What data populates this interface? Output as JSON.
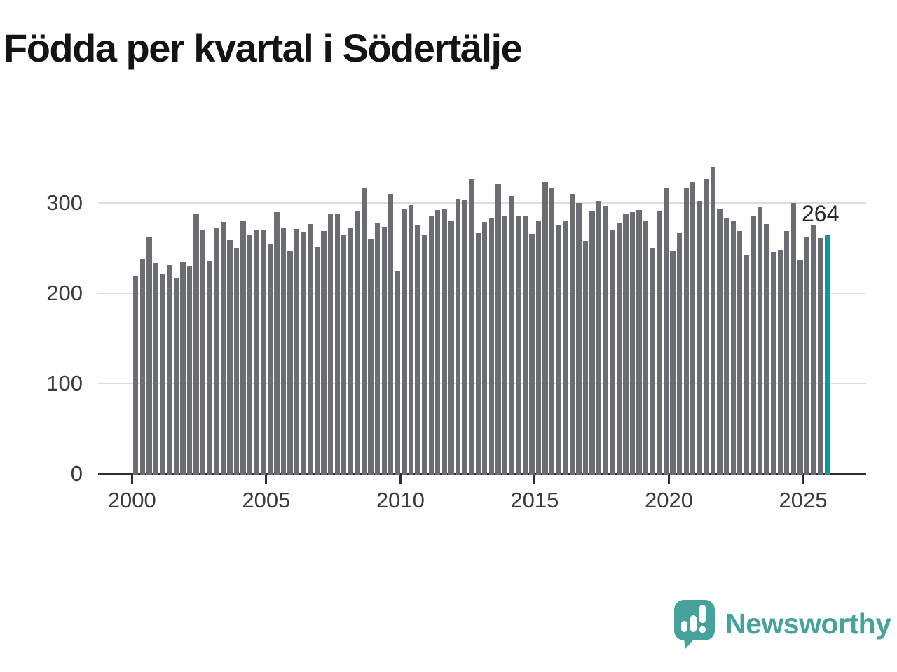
{
  "title": "Födda per kvartal i Södertälje",
  "annotation": {
    "label": "264"
  },
  "logo": {
    "brand": "Newsworthy"
  },
  "colors": {
    "bar": "#6c6c74",
    "highlight": "#0a9a9c",
    "logo_teal": "#47a29b",
    "grid": "#dcdcdc",
    "axis": "#2e2e2e"
  },
  "chart_data": {
    "type": "bar",
    "title": "Födda per kvartal i Södertälje",
    "unit": "födda per kvartal",
    "frequency": "quarterly",
    "start_period": "2000-Q1",
    "end_period": "2025-Q4",
    "xlabel": "",
    "ylabel": "",
    "ylim": [
      0,
      350
    ],
    "grid": "horizontal",
    "legend": "none",
    "highlight_last_bar": true,
    "last_value": 264,
    "y_ticks": [
      {
        "value": 0,
        "label": "0"
      },
      {
        "value": 100,
        "label": "100"
      },
      {
        "value": 200,
        "label": "200"
      },
      {
        "value": 300,
        "label": "300"
      }
    ],
    "x_ticks": [
      {
        "year": 2000,
        "label": "2000"
      },
      {
        "year": 2005,
        "label": "2005"
      },
      {
        "year": 2010,
        "label": "2010"
      },
      {
        "year": 2015,
        "label": "2015"
      },
      {
        "year": 2020,
        "label": "2020"
      },
      {
        "year": 2025,
        "label": "2025"
      }
    ],
    "values": [
      219,
      238,
      263,
      233,
      222,
      232,
      217,
      234,
      230,
      288,
      270,
      236,
      273,
      279,
      259,
      250,
      280,
      265,
      270,
      270,
      254,
      290,
      272,
      247,
      271,
      268,
      277,
      251,
      269,
      288,
      288,
      265,
      272,
      291,
      317,
      260,
      278,
      274,
      310,
      225,
      294,
      298,
      276,
      265,
      285,
      292,
      294,
      281,
      305,
      303,
      326,
      267,
      279,
      283,
      321,
      285,
      308,
      285,
      286,
      266,
      280,
      323,
      316,
      275,
      280,
      310,
      300,
      258,
      291,
      302,
      297,
      270,
      278,
      288,
      290,
      292,
      281,
      250,
      291,
      316,
      247,
      267,
      316,
      323,
      302,
      326,
      340,
      294,
      283,
      280,
      269,
      243,
      285,
      296,
      277,
      246,
      248,
      269,
      300,
      237,
      262,
      275,
      261,
      264
    ]
  }
}
